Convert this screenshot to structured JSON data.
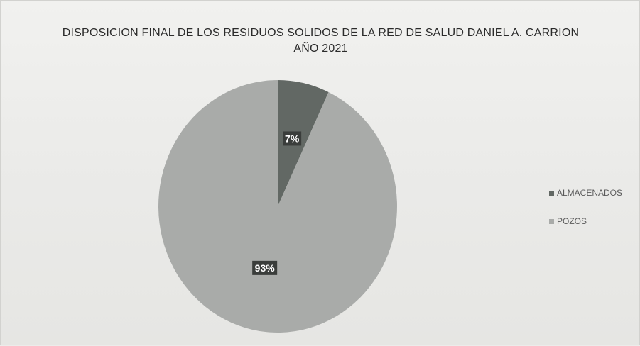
{
  "chart_data": {
    "type": "pie",
    "title": "DISPOSICION FINAL DE LOS RESIDUOS SOLIDOS DE LA RED DE SALUD DANIEL A. CARRION",
    "subtitle": "AÑO 2021",
    "categories": [
      "ALMACENADOS",
      "POZOS"
    ],
    "values": [
      7,
      93
    ],
    "data_labels": [
      "7%",
      "93%"
    ],
    "colors": [
      "#626864",
      "#a9aba9"
    ],
    "legend_position": "right"
  }
}
